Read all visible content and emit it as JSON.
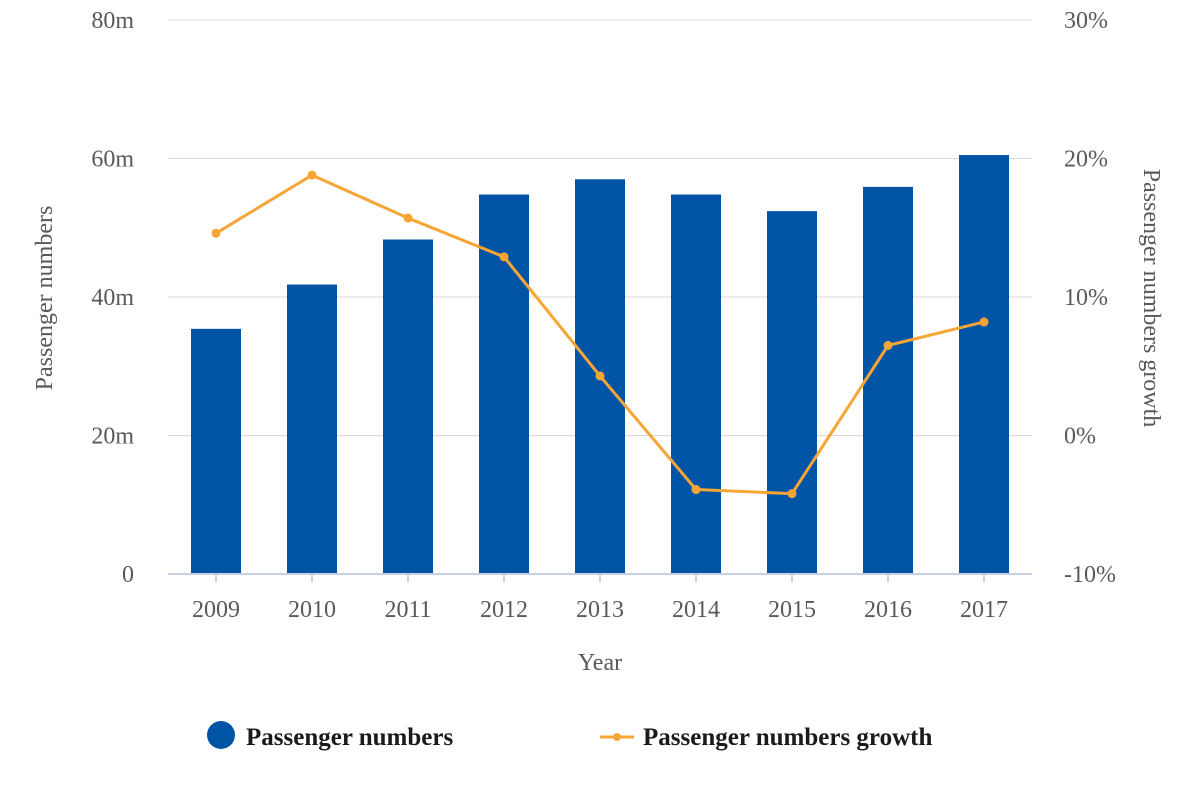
{
  "chart_data": {
    "type": "bar",
    "categories": [
      "2009",
      "2010",
      "2011",
      "2012",
      "2013",
      "2014",
      "2015",
      "2016",
      "2017"
    ],
    "series": [
      {
        "name": "Passenger numbers",
        "type": "bar",
        "axis": "left",
        "color": "#0054a6",
        "values": [
          35.4,
          41.8,
          48.3,
          54.8,
          57.0,
          54.8,
          52.4,
          55.9,
          60.5
        ]
      },
      {
        "name": "Passenger numbers growth",
        "type": "line",
        "axis": "right",
        "color": "#f7a535",
        "values": [
          14.6,
          18.8,
          15.7,
          12.9,
          4.3,
          -3.9,
          -4.2,
          6.5,
          8.2
        ]
      }
    ],
    "xlabel": "Year",
    "ylabel": "Passenger numbers",
    "y2label": "Passenger numbers growth",
    "ylim": [
      0,
      80
    ],
    "y2lim": [
      -10,
      30
    ],
    "yticks": [
      "0",
      "20m",
      "40m",
      "60m",
      "80m"
    ],
    "y2ticks": [
      "-10%",
      "0%",
      "10%",
      "20%",
      "30%"
    ],
    "grid": true,
    "legend": "bottom"
  }
}
